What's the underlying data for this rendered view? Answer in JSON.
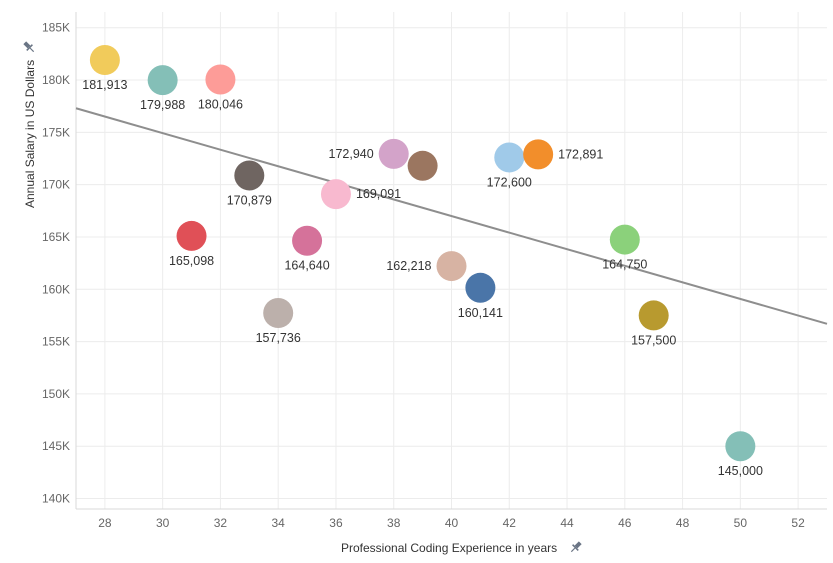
{
  "chart_data": {
    "type": "scatter",
    "xlabel": "Professional Coding Experience in years",
    "ylabel": "Annual Salary in US Dollars",
    "xlim": [
      27,
      53
    ],
    "ylim": [
      139000,
      186500
    ],
    "x_ticks": [
      28,
      30,
      32,
      34,
      36,
      38,
      40,
      42,
      44,
      46,
      48,
      50,
      52
    ],
    "y_ticks": [
      140000,
      145000,
      150000,
      155000,
      160000,
      165000,
      170000,
      175000,
      180000,
      185000
    ],
    "y_tick_labels": [
      "140K",
      "145K",
      "150K",
      "155K",
      "160K",
      "165K",
      "170K",
      "175K",
      "180K",
      "185K"
    ],
    "grid": true,
    "legend": "none",
    "trend_line": {
      "type": "linear",
      "color": "#8e8e8e",
      "start": [
        27,
        177300
      ],
      "end": [
        53,
        156700
      ]
    },
    "points": [
      {
        "x": 28,
        "y": 181913,
        "label": "181,913",
        "color": "#f1cb5b",
        "label_pos": "below"
      },
      {
        "x": 30,
        "y": 179988,
        "label": "179,988",
        "color": "#84bfb7",
        "label_pos": "below"
      },
      {
        "x": 32,
        "y": 180046,
        "label": "180,046",
        "color": "#fd9c98",
        "label_pos": "below"
      },
      {
        "x": 33,
        "y": 170879,
        "label": "170,879",
        "color": "#6f6561",
        "label_pos": "below"
      },
      {
        "x": 31,
        "y": 165098,
        "label": "165,098",
        "color": "#e05057",
        "label_pos": "below"
      },
      {
        "x": 34,
        "y": 157736,
        "label": "157,736",
        "color": "#bcb0ab",
        "label_pos": "below"
      },
      {
        "x": 35,
        "y": 164640,
        "label": "164,640",
        "color": "#d5729a",
        "label_pos": "below"
      },
      {
        "x": 36,
        "y": 169091,
        "label": "169,091",
        "color": "#f8b9cf",
        "label_pos": "right"
      },
      {
        "x": 38,
        "y": 172940,
        "label": "172,940",
        "color": "#d3a3c9",
        "label_pos": "left"
      },
      {
        "x": 39,
        "y": 171800,
        "label": "",
        "color": "#9b7660",
        "label_pos": "none"
      },
      {
        "x": 40,
        "y": 162218,
        "label": "162,218",
        "color": "#d7b3a3",
        "label_pos": "left"
      },
      {
        "x": 41,
        "y": 160141,
        "label": "160,141",
        "color": "#4a75a8",
        "label_pos": "below"
      },
      {
        "x": 42,
        "y": 172600,
        "label": "172,600",
        "color": "#a0cae9",
        "label_pos": "below"
      },
      {
        "x": 43,
        "y": 172891,
        "label": "172,891",
        "color": "#f28e2b",
        "label_pos": "right"
      },
      {
        "x": 46,
        "y": 164750,
        "label": "164,750",
        "color": "#8bd17b",
        "label_pos": "below"
      },
      {
        "x": 47,
        "y": 157500,
        "label": "157,500",
        "color": "#b89a2f",
        "label_pos": "below"
      },
      {
        "x": 50,
        "y": 145000,
        "label": "145,000",
        "color": "#84bfb7",
        "label_pos": "below"
      }
    ]
  }
}
